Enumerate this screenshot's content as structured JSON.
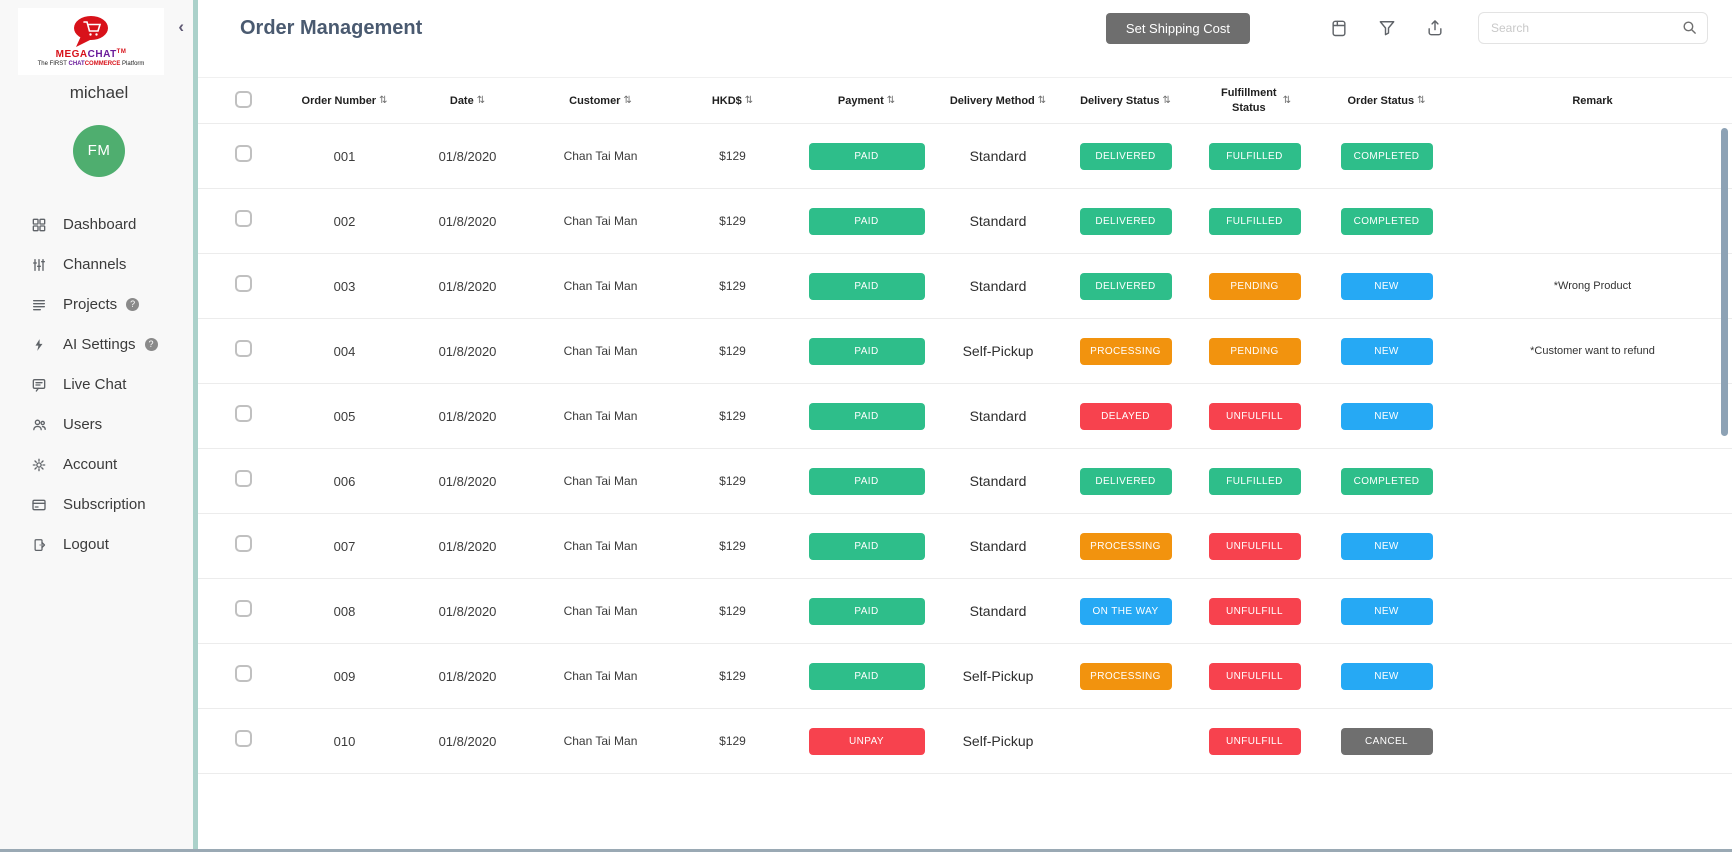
{
  "brand": {
    "name_primary": "MEGA",
    "name_secondary": "CHAT",
    "trademark": "TM",
    "tagline_parts": {
      "pre": "The FIRST ",
      "chat": "CHAT",
      "commerce": "COMMERCE",
      "post": " Platform"
    }
  },
  "sidebar": {
    "collapse_glyph": "‹",
    "username": "michael",
    "avatar_initials": "FM",
    "avatar_color": "#4FAE6F",
    "items": [
      {
        "label": "Dashboard",
        "icon": "dashboard-grid-icon",
        "info": false
      },
      {
        "label": "Channels",
        "icon": "channels-sliders-icon",
        "info": false
      },
      {
        "label": "Projects",
        "icon": "projects-list-icon",
        "info": true
      },
      {
        "label": "AI Settings",
        "icon": "ai-bolt-icon",
        "info": true
      },
      {
        "label": "Live Chat",
        "icon": "live-chat-icon",
        "info": false
      },
      {
        "label": "Users",
        "icon": "users-icon",
        "info": false
      },
      {
        "label": "Account",
        "icon": "account-gear-icon",
        "info": false
      },
      {
        "label": "Subscription",
        "icon": "subscription-card-icon",
        "info": false
      },
      {
        "label": "Logout",
        "icon": "logout-door-icon",
        "info": false
      }
    ],
    "info_glyph": "?"
  },
  "header": {
    "title": "Order Management",
    "shipping_button": "Set Shipping Cost",
    "search_placeholder": "Search"
  },
  "table": {
    "sort_glyph": "⇅",
    "columns": [
      {
        "label": "Order Number",
        "sortable": true
      },
      {
        "label": "Date",
        "sortable": true
      },
      {
        "label": "Customer",
        "sortable": true
      },
      {
        "label": "HKD$",
        "sortable": true
      },
      {
        "label": "Payment",
        "sortable": true
      },
      {
        "label": "Delivery Method",
        "sortable": true
      },
      {
        "label": "Delivery Status",
        "sortable": true
      },
      {
        "label": "Fulfillment Status",
        "sortable": true,
        "two_line": true
      },
      {
        "label": "Order Status",
        "sortable": true
      },
      {
        "label": "Remark",
        "sortable": false
      }
    ],
    "rows": [
      {
        "order_number": "001",
        "date": "01/8/2020",
        "customer": "Chan Tai Man",
        "amount": "$129",
        "payment": {
          "label": "PAID",
          "color": "green"
        },
        "delivery_method": "Standard",
        "delivery_status": {
          "label": "DELIVERED",
          "color": "green"
        },
        "fulfillment_status": {
          "label": "FULFILLED",
          "color": "green"
        },
        "order_status": {
          "label": "COMPLETED",
          "color": "green"
        },
        "remark": ""
      },
      {
        "order_number": "002",
        "date": "01/8/2020",
        "customer": "Chan Tai Man",
        "amount": "$129",
        "payment": {
          "label": "PAID",
          "color": "green"
        },
        "delivery_method": "Standard",
        "delivery_status": {
          "label": "DELIVERED",
          "color": "green"
        },
        "fulfillment_status": {
          "label": "FULFILLED",
          "color": "green"
        },
        "order_status": {
          "label": "COMPLETED",
          "color": "green"
        },
        "remark": ""
      },
      {
        "order_number": "003",
        "date": "01/8/2020",
        "customer": "Chan Tai Man",
        "amount": "$129",
        "payment": {
          "label": "PAID",
          "color": "green"
        },
        "delivery_method": "Standard",
        "delivery_status": {
          "label": "DELIVERED",
          "color": "green"
        },
        "fulfillment_status": {
          "label": "PENDING",
          "color": "orange"
        },
        "order_status": {
          "label": "NEW",
          "color": "blue"
        },
        "remark": "*Wrong Product"
      },
      {
        "order_number": "004",
        "date": "01/8/2020",
        "customer": "Chan Tai Man",
        "amount": "$129",
        "payment": {
          "label": "PAID",
          "color": "green"
        },
        "delivery_method": "Self-Pickup",
        "delivery_status": {
          "label": "PROCESSING",
          "color": "orange"
        },
        "fulfillment_status": {
          "label": "PENDING",
          "color": "orange"
        },
        "order_status": {
          "label": "NEW",
          "color": "blue"
        },
        "remark": "*Customer want to refund"
      },
      {
        "order_number": "005",
        "date": "01/8/2020",
        "customer": "Chan Tai Man",
        "amount": "$129",
        "payment": {
          "label": "PAID",
          "color": "green"
        },
        "delivery_method": "Standard",
        "delivery_status": {
          "label": "DELAYED",
          "color": "red"
        },
        "fulfillment_status": {
          "label": "UNFULFILL",
          "color": "red"
        },
        "order_status": {
          "label": "NEW",
          "color": "blue"
        },
        "remark": ""
      },
      {
        "order_number": "006",
        "date": "01/8/2020",
        "customer": "Chan Tai Man",
        "amount": "$129",
        "payment": {
          "label": "PAID",
          "color": "green"
        },
        "delivery_method": "Standard",
        "delivery_status": {
          "label": "DELIVERED",
          "color": "green"
        },
        "fulfillment_status": {
          "label": "FULFILLED",
          "color": "green"
        },
        "order_status": {
          "label": "COMPLETED",
          "color": "green"
        },
        "remark": ""
      },
      {
        "order_number": "007",
        "date": "01/8/2020",
        "customer": "Chan Tai Man",
        "amount": "$129",
        "payment": {
          "label": "PAID",
          "color": "green"
        },
        "delivery_method": "Standard",
        "delivery_status": {
          "label": "PROCESSING",
          "color": "orange"
        },
        "fulfillment_status": {
          "label": "UNFULFILL",
          "color": "red"
        },
        "order_status": {
          "label": "NEW",
          "color": "blue"
        },
        "remark": ""
      },
      {
        "order_number": "008",
        "date": "01/8/2020",
        "customer": "Chan Tai Man",
        "amount": "$129",
        "payment": {
          "label": "PAID",
          "color": "green"
        },
        "delivery_method": "Standard",
        "delivery_status": {
          "label": "ON THE WAY",
          "color": "blue"
        },
        "fulfillment_status": {
          "label": "UNFULFILL",
          "color": "red"
        },
        "order_status": {
          "label": "NEW",
          "color": "blue"
        },
        "remark": ""
      },
      {
        "order_number": "009",
        "date": "01/8/2020",
        "customer": "Chan Tai Man",
        "amount": "$129",
        "payment": {
          "label": "PAID",
          "color": "green"
        },
        "delivery_method": "Self-Pickup",
        "delivery_status": {
          "label": "PROCESSING",
          "color": "orange"
        },
        "fulfillment_status": {
          "label": "UNFULFILL",
          "color": "red"
        },
        "order_status": {
          "label": "NEW",
          "color": "blue"
        },
        "remark": ""
      },
      {
        "order_number": "010",
        "date": "01/8/2020",
        "customer": "Chan Tai Man",
        "amount": "$129",
        "payment": {
          "label": "UNPAY",
          "color": "red"
        },
        "delivery_method": "Self-Pickup",
        "delivery_status": null,
        "fulfillment_status": {
          "label": "UNFULFILL",
          "color": "red"
        },
        "order_status": {
          "label": "CANCEL",
          "color": "gray"
        },
        "remark": ""
      }
    ]
  },
  "status_colors": {
    "green": "#2EBE8A",
    "orange": "#F2930E",
    "red": "#F7424E",
    "blue": "#26A9F4",
    "gray": "#6F6F6F"
  }
}
